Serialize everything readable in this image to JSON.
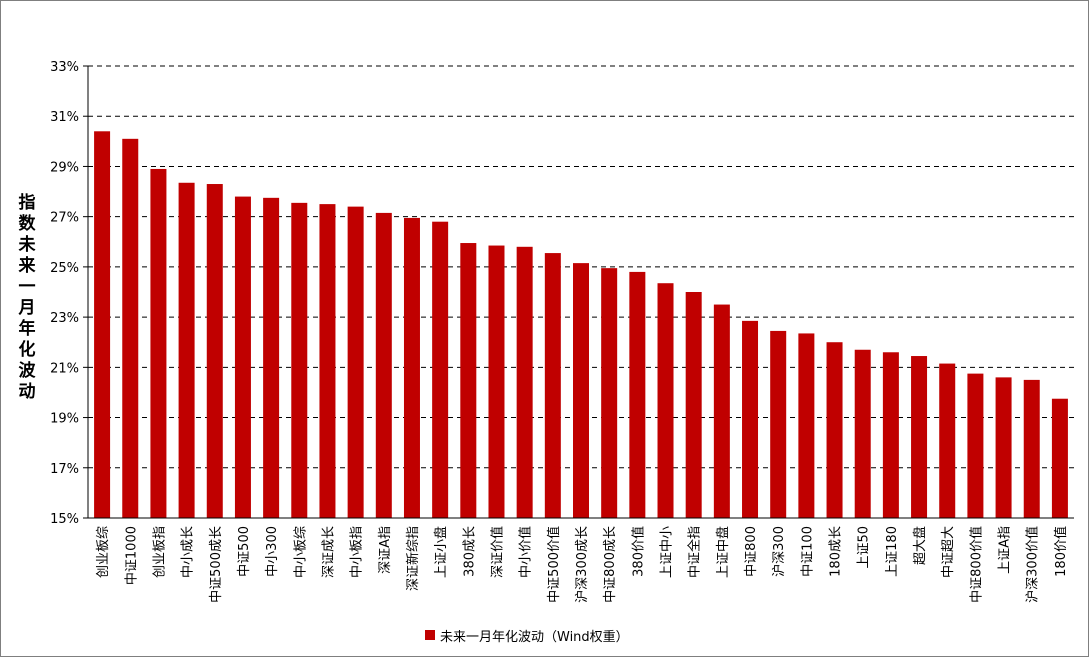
{
  "chart_data": {
    "type": "bar",
    "ylabel": "指数未来一月年化波动",
    "ylim": [
      15,
      33
    ],
    "yticks": [
      "15%",
      "17%",
      "19%",
      "21%",
      "23%",
      "25%",
      "27%",
      "29%",
      "31%",
      "33%"
    ],
    "grid": true,
    "legend_position": "bottom",
    "bar_color": "#c00000",
    "categories": [
      "创业板综",
      "中证1000",
      "创业板指",
      "中小成长",
      "中证500成长",
      "中证500",
      "中小300",
      "中小板综",
      "深证成长",
      "中小板指",
      "深证A指",
      "深证新综指",
      "上证小盘",
      "380成长",
      "深证价值",
      "中小价值",
      "中证500价值",
      "沪深300成长",
      "中证800成长",
      "380价值",
      "上证中小",
      "中证全指",
      "上证中盘",
      "中证800",
      "沪深300",
      "中证100",
      "180成长",
      "上证50",
      "上证180",
      "超大盘",
      "中证超大",
      "中证800价值",
      "上证A指",
      "沪深300价值",
      "180价值"
    ],
    "series": [
      {
        "name": "未来一月年化波动（Wind权重）",
        "values": [
          30.4,
          30.1,
          28.9,
          28.35,
          28.3,
          27.8,
          27.75,
          27.55,
          27.5,
          27.4,
          27.15,
          26.95,
          26.8,
          25.95,
          25.85,
          25.8,
          25.55,
          25.15,
          24.95,
          24.8,
          24.35,
          24.0,
          23.5,
          22.85,
          22.45,
          22.35,
          22.0,
          21.7,
          21.6,
          21.45,
          21.15,
          20.75,
          20.6,
          20.5,
          19.75
        ]
      }
    ]
  }
}
